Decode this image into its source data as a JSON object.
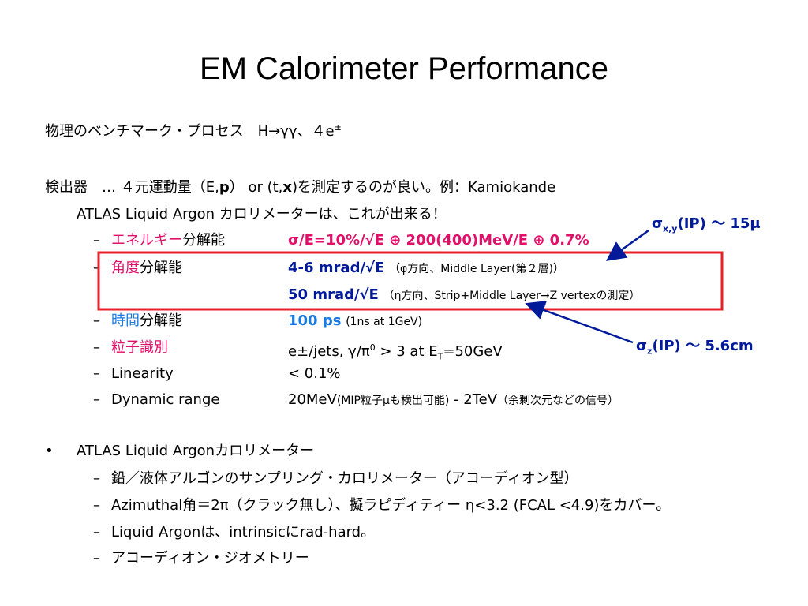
{
  "title": "EM Calorimeter Performance",
  "dash": "–",
  "dot": "•",
  "benchmark": [
    "物理のベンチマーク・プロセス　H→γγ、４e",
    "±"
  ],
  "detector": [
    "検出器　… ４元運動量（E,",
    "p",
    "） or (t,",
    "x",
    ")を測定するのが良い。例：Kamiokande"
  ],
  "atlas_line": "ATLAS Liquid Argon カロリメーターは、これが出来る！",
  "rows": [
    [
      "エネルギー",
      "分解能",
      "σ/E=10%/√E ⊕ 200(400)MeV/E ⊕ 0.7%"
    ],
    [
      "角度",
      "分解能",
      "4-6 mrad/√E",
      "（φ方向、Middle Layer(第２層)）"
    ],
    [
      "50 mrad/√E",
      "（η方向、Strip+Middle Layer→Z vertexの測定）"
    ],
    [
      "時間",
      "分解能",
      "100 ps",
      "(1ns at 1GeV)"
    ],
    [
      "粒子識別",
      "e±/jets, γ/π",
      "0",
      " > 3 at E",
      "T",
      "=50GeV"
    ],
    [
      "Linearity",
      "< 0.1%"
    ],
    [
      "Dynamic range",
      "20MeV",
      "(MIP粒子μも検出可能)",
      " - 2TeV",
      "（余剰次元などの信号）"
    ]
  ],
  "annotations": [
    [
      "σ",
      "x,y",
      "(IP) ～ 15μ"
    ],
    [
      "σ",
      "z",
      "(IP) ～ 5.6cm"
    ]
  ],
  "atlas": {
    "heading": "ATLAS Liquid Argonカロリメーター",
    "items": [
      "鉛／液体アルゴンのサンプリング・カロリメーター（アコーディオン型）",
      "Azimuthal角＝2π（クラック無し）、擬ラピディティー η<3.2 (FCAL <4.9)をカバー。",
      "Liquid Argonは、intrinsicにrad-hard。",
      "アコーディオン・ジオメトリー"
    ]
  }
}
